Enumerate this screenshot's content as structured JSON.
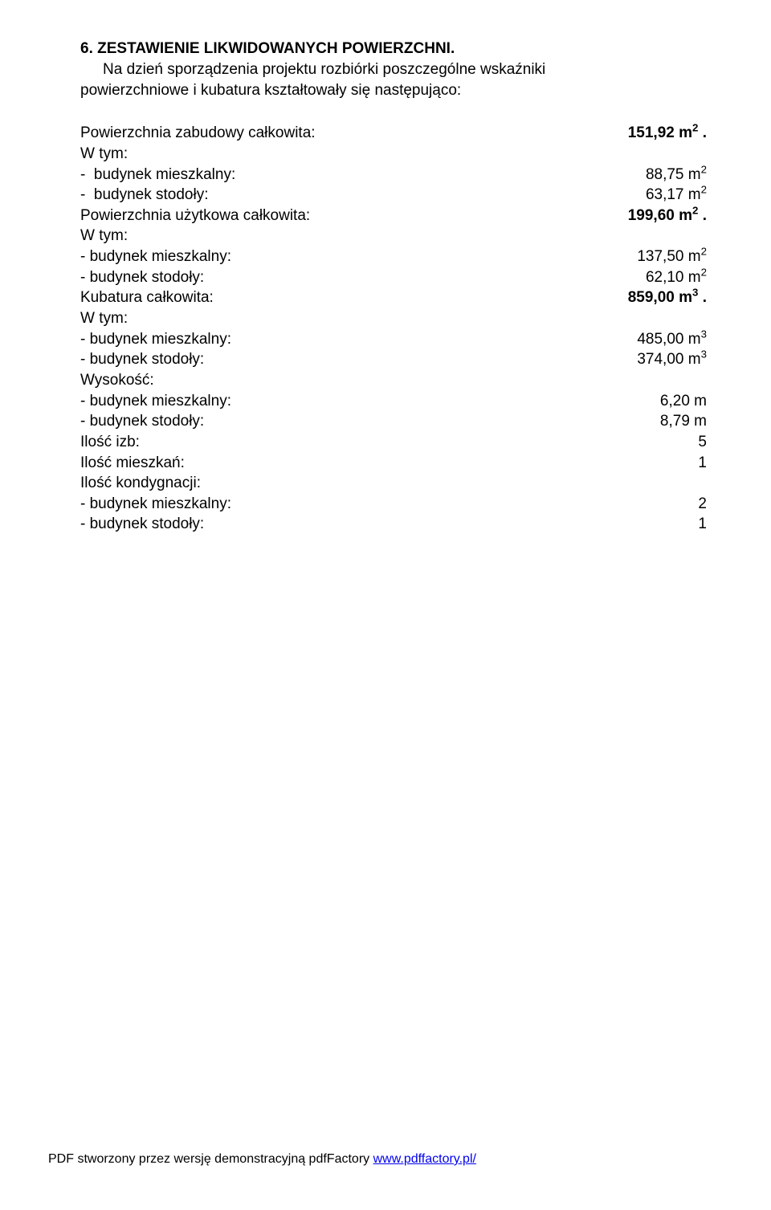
{
  "section_number": "6.",
  "section_title": "ZESTAWIENIE LIKWIDOWANYCH POWIERZCHNI.",
  "intro_line1": "Na dzień sporządzenia projektu rozbiórki poszczególne wskaźniki",
  "intro_line2": "powierzchniowe i kubatura kształtowały się następująco:",
  "rows": [
    {
      "label": "Powierzchnia zabudowy całkowita:",
      "value": "151,92  m",
      "sup": "2",
      "suffix": " .",
      "bold_label": false,
      "bold_value": true
    },
    {
      "label": "W tym:",
      "value": "",
      "sup": "",
      "suffix": "",
      "bold_label": false,
      "bold_value": false
    },
    {
      "label": "-  budynek mieszkalny:",
      "value": "88,75 m",
      "sup": "2",
      "suffix": "",
      "bold_label": false,
      "bold_value": false
    },
    {
      "label": "-  budynek stodoły:",
      "value": "63,17 m",
      "sup": "2",
      "suffix": "",
      "bold_label": false,
      "bold_value": false
    },
    {
      "label": "Powierzchnia użytkowa całkowita:",
      "value": "199,60  m",
      "sup": "2",
      "suffix": " .",
      "bold_label": false,
      "bold_value": true
    },
    {
      "label": "W tym:",
      "value": "",
      "sup": "",
      "suffix": "",
      "bold_label": false,
      "bold_value": false
    },
    {
      "label": "- budynek mieszkalny:",
      "value": "137,50 m",
      "sup": "2",
      "suffix": "",
      "bold_label": false,
      "bold_value": false
    },
    {
      "label": "- budynek stodoły:",
      "value": "62,10 m",
      "sup": "2",
      "suffix": "",
      "bold_label": false,
      "bold_value": false
    },
    {
      "label": "Kubatura całkowita:",
      "value": "859,00 m",
      "sup": "3",
      "suffix": " .",
      "bold_label": false,
      "bold_value": true
    },
    {
      "label": "W tym:",
      "value": "",
      "sup": "",
      "suffix": "",
      "bold_label": false,
      "bold_value": false
    },
    {
      "label": "- budynek mieszkalny:",
      "value": "485,00 m",
      "sup": "3",
      "suffix": "",
      "bold_label": false,
      "bold_value": false
    },
    {
      "label": "- budynek stodoły:",
      "value": "374,00 m",
      "sup": "3",
      "suffix": "",
      "bold_label": false,
      "bold_value": false
    },
    {
      "label": "Wysokość:",
      "value": "",
      "sup": "",
      "suffix": "",
      "bold_label": false,
      "bold_value": false
    },
    {
      "label": "- budynek mieszkalny:",
      "value": "6,20 m",
      "sup": "",
      "suffix": "",
      "bold_label": false,
      "bold_value": false
    },
    {
      "label": "- budynek stodoły:",
      "value": "8,79 m",
      "sup": "",
      "suffix": "",
      "bold_label": false,
      "bold_value": false
    },
    {
      "label": "Ilość izb:",
      "value": "5",
      "sup": "",
      "suffix": "",
      "bold_label": false,
      "bold_value": false
    },
    {
      "label": "Ilość mieszkań:",
      "value": "1",
      "sup": "",
      "suffix": "",
      "bold_label": false,
      "bold_value": false
    },
    {
      "label": "Ilość kondygnacji:",
      "value": "",
      "sup": "",
      "suffix": "",
      "bold_label": false,
      "bold_value": false
    },
    {
      "label": "- budynek mieszkalny:",
      "value": "2",
      "sup": "",
      "suffix": "",
      "bold_label": false,
      "bold_value": false
    },
    {
      "label": "- budynek stodoły:",
      "value": "1",
      "sup": "",
      "suffix": "",
      "bold_label": false,
      "bold_value": false
    }
  ],
  "footer_prefix": "PDF stworzony przez wersję demonstracyjną pdfFactory ",
  "footer_link_text": "www.pdffactory.pl/"
}
